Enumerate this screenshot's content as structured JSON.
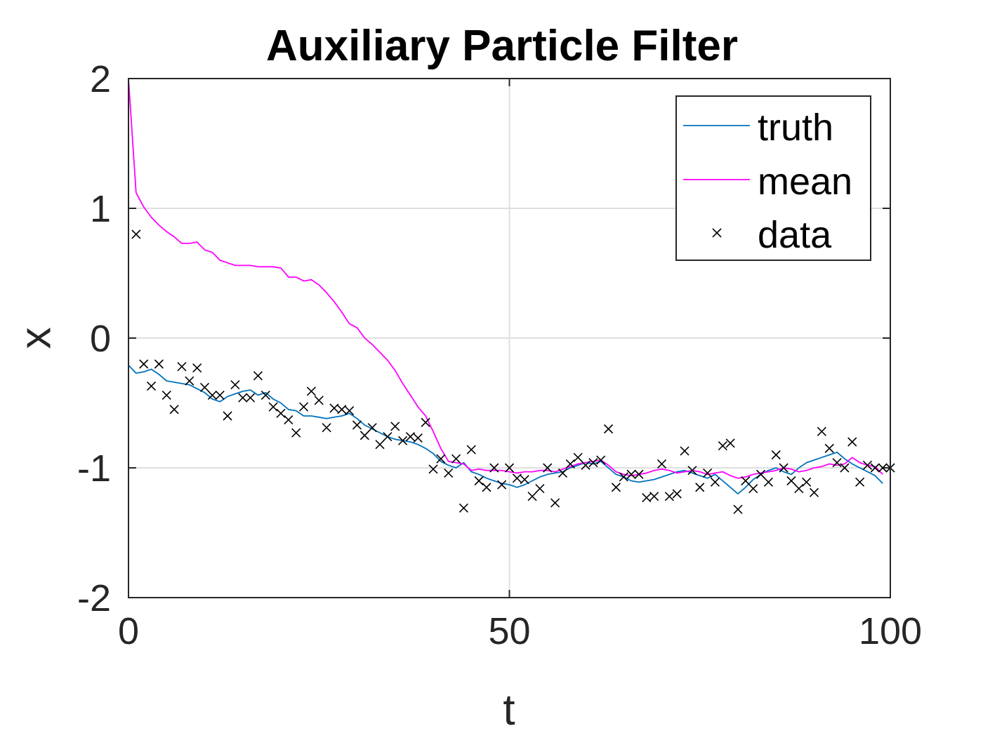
{
  "chart_data": {
    "type": "line",
    "title": "Auxiliary Particle Filter",
    "xlabel": "t",
    "ylabel": "x",
    "xlim": [
      0,
      100
    ],
    "ylim": [
      -2,
      2
    ],
    "xticks": [
      0,
      50,
      100
    ],
    "yticks": [
      -2,
      -1,
      0,
      1,
      2
    ],
    "grid": true,
    "legend_position": "top-right",
    "series": [
      {
        "name": "truth",
        "style": "line",
        "color": "#0072BD",
        "x": [
          0,
          1,
          2,
          3,
          4,
          5,
          6,
          7,
          8,
          9,
          10,
          11,
          12,
          13,
          14,
          15,
          16,
          17,
          18,
          19,
          20,
          21,
          22,
          23,
          24,
          25,
          26,
          27,
          28,
          29,
          30,
          31,
          32,
          33,
          34,
          35,
          36,
          37,
          38,
          39,
          40,
          41,
          42,
          43,
          44,
          45,
          46,
          47,
          48,
          49,
          50,
          51,
          52,
          53,
          54,
          55,
          56,
          57,
          58,
          59,
          60,
          61,
          62,
          63,
          64,
          65,
          66,
          67,
          68,
          69,
          70,
          71,
          72,
          73,
          74,
          75,
          76,
          77,
          78,
          79,
          80,
          81,
          82,
          83,
          84,
          85,
          86,
          87,
          88,
          89,
          90,
          91,
          92,
          93,
          94,
          95,
          96,
          97,
          98,
          99
        ],
        "y": [
          -0.21,
          -0.27,
          -0.26,
          -0.24,
          -0.28,
          -0.33,
          -0.34,
          -0.35,
          -0.36,
          -0.39,
          -0.42,
          -0.47,
          -0.49,
          -0.45,
          -0.43,
          -0.41,
          -0.4,
          -0.44,
          -0.42,
          -0.47,
          -0.5,
          -0.55,
          -0.56,
          -0.6,
          -0.6,
          -0.61,
          -0.62,
          -0.61,
          -0.6,
          -0.58,
          -0.62,
          -0.67,
          -0.7,
          -0.73,
          -0.76,
          -0.78,
          -0.79,
          -0.8,
          -0.82,
          -0.85,
          -0.89,
          -0.95,
          -0.98,
          -1.0,
          -0.96,
          -1.03,
          -1.05,
          -1.08,
          -1.1,
          -1.12,
          -1.13,
          -1.15,
          -1.13,
          -1.1,
          -1.07,
          -1.05,
          -1.04,
          -1.03,
          -1.0,
          -0.98,
          -0.96,
          -0.97,
          -0.95,
          -1.0,
          -1.05,
          -1.07,
          -1.1,
          -1.11,
          -1.1,
          -1.09,
          -1.07,
          -1.05,
          -1.03,
          -1.02,
          -1.04,
          -1.06,
          -1.08,
          -1.05,
          -1.1,
          -1.15,
          -1.2,
          -1.15,
          -1.09,
          -1.05,
          -1.02,
          -1.0,
          -1.03,
          -1.05,
          -1.0,
          -0.96,
          -0.94,
          -0.92,
          -0.9,
          -0.88,
          -0.93,
          -0.97,
          -1.0,
          -1.03,
          -1.06,
          -1.12
        ]
      },
      {
        "name": "mean",
        "style": "line",
        "color": "#FF00FF",
        "x": [
          0,
          1,
          2,
          3,
          4,
          5,
          6,
          7,
          8,
          9,
          10,
          11,
          12,
          13,
          14,
          15,
          16,
          17,
          18,
          19,
          20,
          21,
          22,
          23,
          24,
          25,
          26,
          27,
          28,
          29,
          30,
          31,
          32,
          33,
          34,
          35,
          36,
          37,
          38,
          39,
          40,
          41,
          42,
          43,
          44,
          45,
          46,
          47,
          48,
          49,
          50,
          51,
          52,
          53,
          54,
          55,
          56,
          57,
          58,
          59,
          60,
          61,
          62,
          63,
          64,
          65,
          66,
          67,
          68,
          69,
          70,
          71,
          72,
          73,
          74,
          75,
          76,
          77,
          78,
          79,
          80,
          81,
          82,
          83,
          84,
          85,
          86,
          87,
          88,
          89,
          90,
          91,
          92,
          93,
          94,
          95,
          96,
          97,
          98,
          99
        ],
        "y": [
          2.0,
          1.12,
          1.01,
          0.93,
          0.87,
          0.82,
          0.78,
          0.73,
          0.73,
          0.74,
          0.68,
          0.66,
          0.6,
          0.58,
          0.56,
          0.56,
          0.56,
          0.55,
          0.55,
          0.55,
          0.54,
          0.47,
          0.47,
          0.44,
          0.45,
          0.41,
          0.35,
          0.28,
          0.2,
          0.11,
          0.08,
          0.0,
          -0.05,
          -0.11,
          -0.17,
          -0.25,
          -0.35,
          -0.44,
          -0.53,
          -0.6,
          -0.72,
          -0.85,
          -0.95,
          -0.96,
          -0.97,
          -1.02,
          -1.01,
          -1.02,
          -1.02,
          -1.02,
          -1.03,
          -1.04,
          -1.03,
          -1.03,
          -1.02,
          -1.02,
          -1.03,
          -1.01,
          -0.99,
          -0.97,
          -0.96,
          -0.95,
          -0.94,
          -0.98,
          -1.03,
          -1.05,
          -1.06,
          -1.05,
          -1.04,
          -1.02,
          -1.01,
          -1.02,
          -1.04,
          -1.03,
          -1.02,
          -1.03,
          -1.05,
          -1.04,
          -1.03,
          -1.06,
          -1.08,
          -1.07,
          -1.05,
          -1.04,
          -1.03,
          -1.02,
          -1.0,
          -1.01,
          -1.03,
          -1.02,
          -1.0,
          -0.99,
          -0.97,
          -0.98,
          -0.97,
          -0.92,
          -0.96,
          -0.98,
          -0.99,
          -1.05
        ]
      },
      {
        "name": "data",
        "style": "markers",
        "marker": "x",
        "color": "#000000",
        "x": [
          1,
          2,
          3,
          4,
          5,
          6,
          7,
          8,
          9,
          10,
          11,
          12,
          13,
          14,
          15,
          16,
          17,
          18,
          19,
          20,
          21,
          22,
          23,
          24,
          25,
          26,
          27,
          28,
          29,
          30,
          31,
          32,
          33,
          34,
          35,
          36,
          37,
          38,
          39,
          40,
          41,
          42,
          43,
          44,
          45,
          46,
          47,
          48,
          49,
          50,
          51,
          52,
          53,
          54,
          55,
          56,
          57,
          58,
          59,
          60,
          61,
          62,
          63,
          64,
          65,
          66,
          67,
          68,
          69,
          70,
          71,
          72,
          73,
          74,
          75,
          76,
          77,
          78,
          79,
          80,
          81,
          82,
          83,
          84,
          85,
          86,
          87,
          88,
          89,
          90,
          91,
          92,
          93,
          94,
          95,
          96,
          97,
          98,
          99,
          100
        ],
        "y": [
          0.8,
          -0.2,
          -0.37,
          -0.2,
          -0.44,
          -0.55,
          -0.22,
          -0.33,
          -0.23,
          -0.38,
          -0.44,
          -0.44,
          -0.6,
          -0.36,
          -0.46,
          -0.46,
          -0.29,
          -0.44,
          -0.53,
          -0.58,
          -0.63,
          -0.73,
          -0.53,
          -0.41,
          -0.48,
          -0.69,
          -0.54,
          -0.55,
          -0.56,
          -0.67,
          -0.75,
          -0.69,
          -0.82,
          -0.76,
          -0.68,
          -0.79,
          -0.76,
          -0.77,
          -0.65,
          -1.01,
          -0.93,
          -1.04,
          -0.93,
          -1.31,
          -0.86,
          -1.1,
          -1.15,
          -1.0,
          -1.13,
          -1.0,
          -1.08,
          -1.09,
          -1.22,
          -1.16,
          -1.0,
          -1.27,
          -1.04,
          -0.97,
          -0.92,
          -0.98,
          -0.96,
          -0.94,
          -0.7,
          -1.15,
          -1.07,
          -1.05,
          -1.05,
          -1.23,
          -1.22,
          -0.97,
          -1.22,
          -1.2,
          -0.87,
          -1.02,
          -1.15,
          -1.04,
          -1.11,
          -0.83,
          -0.81,
          -1.32,
          -1.1,
          -1.16,
          -1.05,
          -1.11,
          -0.9,
          -1.0,
          -1.1,
          -1.16,
          -1.11,
          -1.19,
          -0.72,
          -0.85,
          -0.96,
          -1.0,
          -0.8,
          -1.11,
          -0.98,
          -1.0,
          -1.0,
          -1.0
        ]
      }
    ]
  }
}
